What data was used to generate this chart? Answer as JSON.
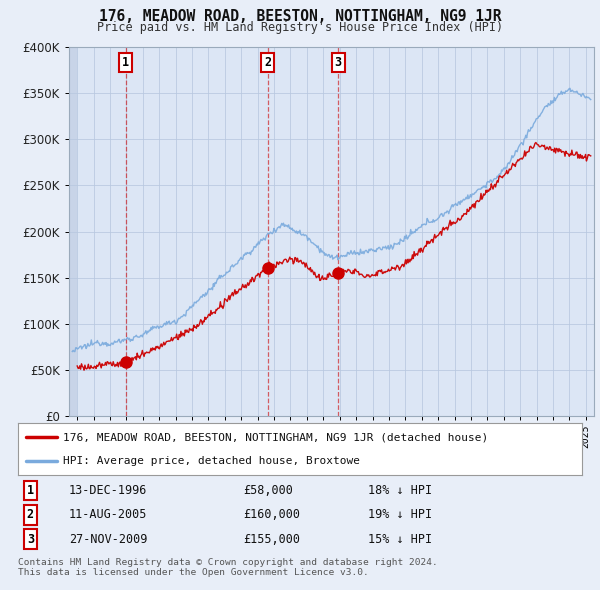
{
  "title": "176, MEADOW ROAD, BEESTON, NOTTINGHAM, NG9 1JR",
  "subtitle": "Price paid vs. HM Land Registry's House Price Index (HPI)",
  "background_color": "#e8eef8",
  "plot_bg_color": "#dce6f5",
  "hatch_color": "#c8d4e8",
  "grid_color": "#b8c8e0",
  "ylabel_color": "#222222",
  "ylim": [
    0,
    400000
  ],
  "yticks": [
    0,
    50000,
    100000,
    150000,
    200000,
    250000,
    300000,
    350000,
    400000
  ],
  "ytick_labels": [
    "£0",
    "£50K",
    "£100K",
    "£150K",
    "£200K",
    "£250K",
    "£300K",
    "£350K",
    "£400K"
  ],
  "transactions": [
    {
      "label": "1",
      "date": "13-DEC-1996",
      "x": 1996.95,
      "price": 58000,
      "pct": "18% ↓ HPI"
    },
    {
      "label": "2",
      "date": "11-AUG-2005",
      "x": 2005.61,
      "price": 160000,
      "pct": "19% ↓ HPI"
    },
    {
      "label": "3",
      "date": "27-NOV-2009",
      "x": 2009.91,
      "price": 155000,
      "pct": "15% ↓ HPI"
    }
  ],
  "legend_entries": [
    "176, MEADOW ROAD, BEESTON, NOTTINGHAM, NG9 1JR (detached house)",
    "HPI: Average price, detached house, Broxtowe"
  ],
  "footer1": "Contains HM Land Registry data © Crown copyright and database right 2024.",
  "footer2": "This data is licensed under the Open Government Licence v3.0.",
  "red_line_color": "#cc0000",
  "blue_line_color": "#7aaadd",
  "marker_color": "#cc0000",
  "xmin": 1993.5,
  "xmax": 2025.5
}
